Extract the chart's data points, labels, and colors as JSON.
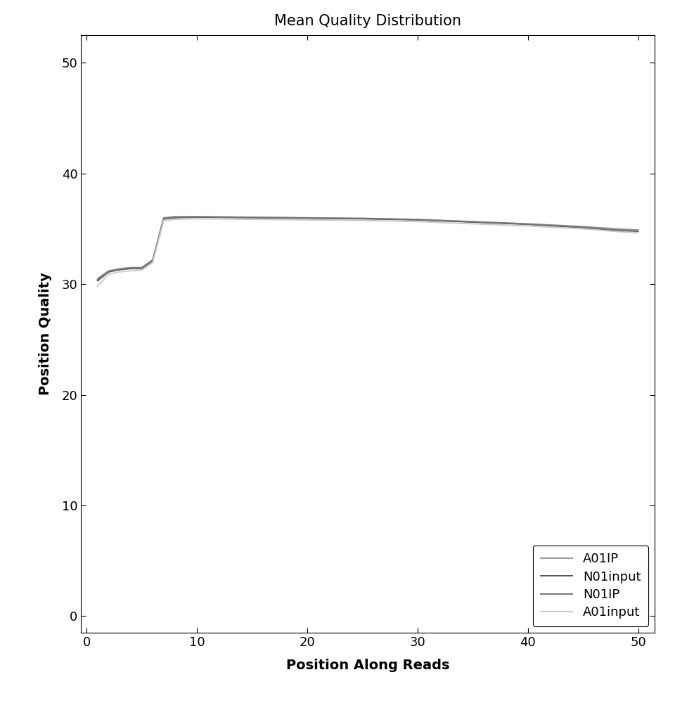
{
  "title": "Mean Quality Distribution",
  "xlabel": "Position Along Reads",
  "ylabel": "Position Quality",
  "xlim": [
    -0.5,
    51.5
  ],
  "ylim": [
    -1.5,
    52.5
  ],
  "xticks": [
    0,
    10,
    20,
    30,
    40,
    50
  ],
  "yticks": [
    0,
    10,
    20,
    30,
    40,
    50
  ],
  "series": [
    {
      "label": "A01IP",
      "color": "#999999",
      "linewidth": 1.4,
      "x": [
        1,
        2,
        3,
        4,
        5,
        6,
        7,
        8,
        10,
        15,
        20,
        25,
        30,
        35,
        40,
        45,
        48,
        49,
        50
      ],
      "y": [
        30.5,
        31.2,
        31.4,
        31.5,
        31.5,
        32.2,
        36.0,
        36.1,
        36.1,
        36.05,
        36.0,
        35.95,
        35.85,
        35.65,
        35.45,
        35.2,
        35.0,
        34.95,
        34.9
      ]
    },
    {
      "label": "N01input",
      "color": "#555555",
      "linewidth": 1.4,
      "x": [
        1,
        2,
        3,
        4,
        5,
        6,
        7,
        8,
        10,
        15,
        20,
        25,
        30,
        35,
        40,
        45,
        48,
        49,
        50
      ],
      "y": [
        30.3,
        31.1,
        31.3,
        31.4,
        31.4,
        32.1,
        35.9,
        36.0,
        36.05,
        36.0,
        35.95,
        35.9,
        35.8,
        35.6,
        35.4,
        35.1,
        34.85,
        34.8,
        34.75
      ]
    },
    {
      "label": "N01IP",
      "color": "#777777",
      "linewidth": 1.4,
      "x": [
        1,
        2,
        3,
        4,
        5,
        6,
        7,
        8,
        10,
        15,
        20,
        25,
        30,
        35,
        40,
        45,
        48,
        49,
        50
      ],
      "y": [
        30.4,
        31.15,
        31.35,
        31.45,
        31.45,
        32.15,
        35.95,
        36.05,
        36.08,
        36.03,
        35.98,
        35.93,
        35.83,
        35.63,
        35.43,
        35.15,
        34.9,
        34.85,
        34.8
      ]
    },
    {
      "label": "A01input",
      "color": "#cccccc",
      "linewidth": 1.4,
      "x": [
        1,
        2,
        3,
        4,
        5,
        6,
        7,
        8,
        10,
        15,
        20,
        25,
        30,
        35,
        40,
        45,
        48,
        49,
        50
      ],
      "y": [
        29.8,
        30.9,
        31.1,
        31.2,
        31.25,
        31.95,
        35.75,
        35.85,
        35.9,
        35.85,
        35.8,
        35.75,
        35.65,
        35.45,
        35.25,
        35.0,
        34.75,
        34.7,
        34.65
      ]
    }
  ],
  "legend_loc": "lower right",
  "background_color": "#ffffff",
  "title_fontsize": 15,
  "label_fontsize": 14,
  "tick_fontsize": 13
}
